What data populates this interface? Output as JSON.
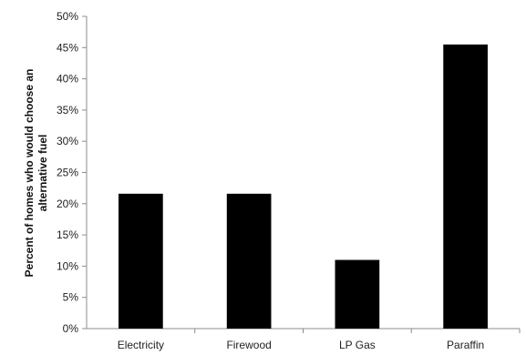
{
  "chart_data": {
    "type": "bar",
    "categories": [
      "Electricity",
      "Firewood",
      "LP Gas",
      "Paraffin"
    ],
    "values": [
      21.6,
      21.6,
      11.0,
      45.5
    ],
    "ylabel_lines": [
      "Percent of homes who would choose an",
      "alternative fuel"
    ],
    "ylim": [
      0,
      50
    ],
    "yticks": [
      {
        "value": 0,
        "label": "0%"
      },
      {
        "value": 5,
        "label": "5%"
      },
      {
        "value": 10,
        "label": "10%"
      },
      {
        "value": 15,
        "label": "15%"
      },
      {
        "value": 20,
        "label": "20%"
      },
      {
        "value": 25,
        "label": "25%"
      },
      {
        "value": 30,
        "label": "30%"
      },
      {
        "value": 35,
        "label": "35%"
      },
      {
        "value": 40,
        "label": "40%"
      },
      {
        "value": 45,
        "label": "45%"
      },
      {
        "value": 50,
        "label": "50%"
      }
    ],
    "grid": false,
    "legend": "none",
    "bar_color": "#000000",
    "axis_color": "#8c8c8c"
  }
}
